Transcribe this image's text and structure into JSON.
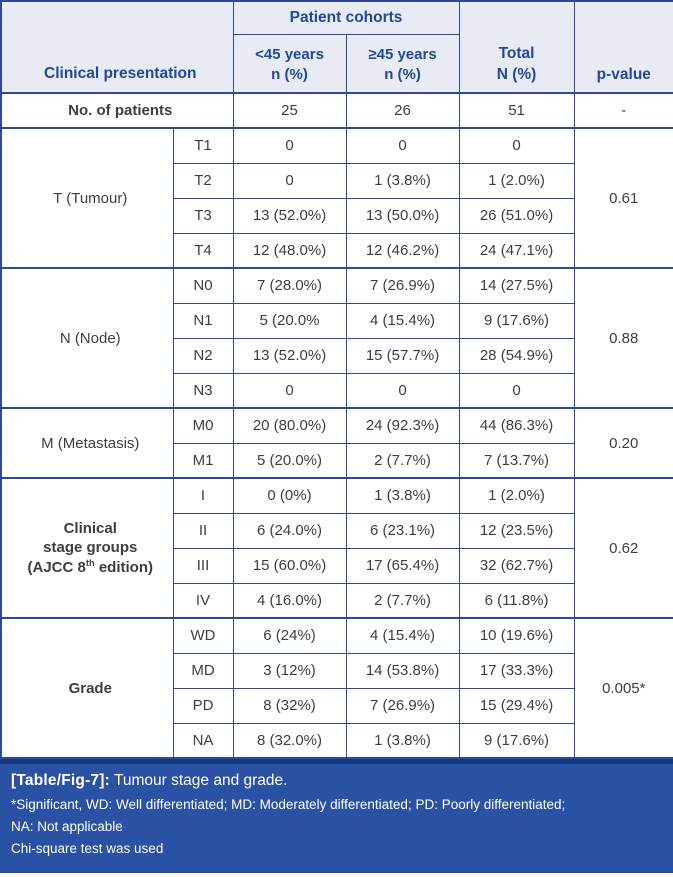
{
  "colors": {
    "border": "#2b4a9c",
    "header_bg": "#e9ebf4",
    "header_text": "#21489b",
    "body_text": "#3e3e3e",
    "footer_bg": "#2a51a3",
    "footer_accent": "#17367f",
    "footer_text": "#ffffff"
  },
  "header": {
    "clinical_presentation": "Clinical presentation",
    "patient_cohorts": "Patient cohorts",
    "under45": [
      "<45 years",
      "n (%)"
    ],
    "over45": [
      "≥45 years",
      "n (%)"
    ],
    "total": [
      "Total",
      "N (%)"
    ],
    "p_value": "p-value"
  },
  "patients_row": {
    "label": "No. of patients",
    "under45": "25",
    "over45": "26",
    "total": "51",
    "p": "-"
  },
  "sections": [
    {
      "label": "T (Tumour)",
      "p": "0.61",
      "rows": [
        {
          "sub": "T1",
          "under45": "0",
          "over45": "0",
          "total": "0"
        },
        {
          "sub": "T2",
          "under45": "0",
          "over45": "1 (3.8%)",
          "total": "1 (2.0%)"
        },
        {
          "sub": "T3",
          "under45": "13 (52.0%)",
          "over45": "13 (50.0%)",
          "total": "26 (51.0%)"
        },
        {
          "sub": "T4",
          "under45": "12 (48.0%)",
          "over45": "12 (46.2%)",
          "total": "24 (47.1%)"
        }
      ]
    },
    {
      "label": "N (Node)",
      "p": "0.88",
      "rows": [
        {
          "sub": "N0",
          "under45": "7 (28.0%)",
          "over45": "7 (26.9%)",
          "total": "14 (27.5%)"
        },
        {
          "sub": "N1",
          "under45": "5 (20.0%",
          "over45": "4 (15.4%)",
          "total": "9 (17.6%)"
        },
        {
          "sub": "N2",
          "under45": "13 (52.0%)",
          "over45": "15 (57.7%)",
          "total": "28 (54.9%)"
        },
        {
          "sub": "N3",
          "under45": "0",
          "over45": "0",
          "total": "0"
        }
      ]
    },
    {
      "label": "M (Metastasis)",
      "p": "0.20",
      "rows": [
        {
          "sub": "M0",
          "under45": "20 (80.0%)",
          "over45": "24 (92.3%)",
          "total": "44 (86.3%)"
        },
        {
          "sub": "M1",
          "under45": "5 (20.0%)",
          "over45": "2 (7.7%)",
          "total": "7 (13.7%)"
        }
      ]
    },
    {
      "label_lines": [
        "Clinical",
        "stage groups"
      ],
      "label_line3": {
        "pre": "(AJCC 8",
        "sup": "th",
        "post": " edition)"
      },
      "p": "0.62",
      "rows": [
        {
          "sub": "I",
          "under45": "0 (0%)",
          "over45": "1 (3.8%)",
          "total": "1 (2.0%)"
        },
        {
          "sub": "II",
          "under45": "6 (24.0%)",
          "over45": "6 (23.1%)",
          "total": "12 (23.5%)"
        },
        {
          "sub": "III",
          "under45": "15 (60.0%)",
          "over45": "17 (65.4%)",
          "total": "32 (62.7%)"
        },
        {
          "sub": "IV",
          "under45": "4 (16.0%)",
          "over45": "2 (7.7%)",
          "total": "6 (11.8%)"
        }
      ]
    },
    {
      "label": "Grade",
      "p": "0.005*",
      "rows": [
        {
          "sub": "WD",
          "under45": "6 (24%)",
          "over45": "4 (15.4%)",
          "total": "10 (19.6%)"
        },
        {
          "sub": "MD",
          "under45": "3 (12%)",
          "over45": "14 (53.8%)",
          "total": "17 (33.3%)"
        },
        {
          "sub": "PD",
          "under45": "8 (32%)",
          "over45": "7 (26.9%)",
          "total": "15 (29.4%)"
        },
        {
          "sub": "NA",
          "under45": "8 (32.0%)",
          "over45": "1 (3.8%)",
          "total": "9 (17.6%)"
        }
      ]
    }
  ],
  "footer": {
    "label": "[Table/Fig-7]:",
    "title": " Tumour stage and grade.",
    "note_line1": "*Significant, WD: Well differentiated; MD: Moderately differentiated; PD: Poorly differentiated;",
    "note_line2": "NA: Not applicable",
    "note_line3": "Chi-square test was used"
  }
}
